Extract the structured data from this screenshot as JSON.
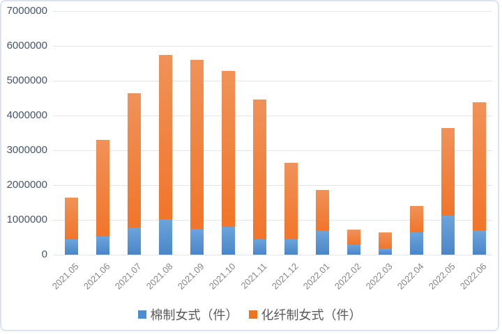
{
  "chart_data": {
    "type": "bar",
    "stacked": true,
    "title": "",
    "xlabel": "",
    "ylabel": "",
    "categories": [
      "2021.05",
      "2021.06",
      "2021.07",
      "2021.08",
      "2021.09",
      "2021.10",
      "2021.11",
      "2021.12",
      "2022.01",
      "2022.02",
      "2022.03",
      "2022.04",
      "2022.05",
      "2022.06"
    ],
    "series": [
      {
        "name": "棉制女式（件）",
        "legend_color": "#4b8fd3",
        "color_top": "#6ca4db",
        "color_bottom": "#4a86c8",
        "values": [
          450000,
          520000,
          780000,
          1020000,
          750000,
          810000,
          440000,
          450000,
          710000,
          280000,
          190000,
          650000,
          1120000,
          700000
        ]
      },
      {
        "name": "化纤制女式（件）",
        "legend_color": "#ee7420",
        "color_top": "#f09259",
        "color_bottom": "#f1752a",
        "values": [
          1200000,
          2780000,
          3870000,
          4730000,
          4860000,
          4470000,
          4020000,
          2200000,
          1150000,
          450000,
          450000,
          750000,
          2520000,
          3680000
        ]
      }
    ],
    "ylim": [
      0,
      7000000
    ],
    "y_ticks": [
      0,
      1000000,
      2000000,
      3000000,
      4000000,
      5000000,
      6000000,
      7000000
    ],
    "grid": "horizontal",
    "legend_position": "bottom"
  }
}
